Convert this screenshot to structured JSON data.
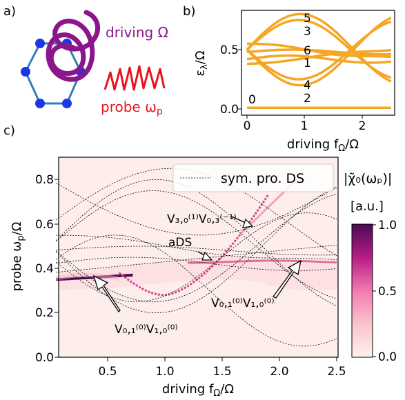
{
  "panel_a": {
    "label": "a)",
    "driving_text": "driving Ω",
    "probe_text_main": "probe ω",
    "probe_text_sub": "p"
  },
  "panel_b": {
    "label": "b)",
    "ylabel_main": "ε",
    "ylabel_sub": "λ",
    "ylabel_rest": "/Ω",
    "xlabel_main": "driving f",
    "xlabel_sub": "Ω",
    "xlabel_rest": "/Ω",
    "xticks": [
      "0",
      "1",
      "2"
    ],
    "yticks": [
      "0.0",
      "0.5"
    ],
    "level_labels": [
      "5",
      "3",
      "6",
      "1",
      "4",
      "2",
      "0"
    ]
  },
  "panel_c": {
    "label": "c)",
    "legend_text": "sym. pro. DS",
    "ylabel_main": "probe ω",
    "ylabel_sub": "p",
    "ylabel_rest": "/Ω",
    "xlabel_main": "driving f",
    "xlabel_sub": "Ω",
    "xlabel_rest": "/Ω",
    "xticks": [
      "0.5",
      "1.0",
      "1.5",
      "2.0",
      "2.5"
    ],
    "yticks": [
      "0.0",
      "0.2",
      "0.4",
      "0.6",
      "0.8"
    ],
    "colorbar_title": "|χ̃₀(ωₚ)|",
    "colorbar_unit": "[a.u.]",
    "colorbar_ticks": [
      "0.0",
      "0.5",
      "1.0"
    ],
    "ann_top": "V₃,₀⁽¹⁾V₀,₃⁽⁻¹⁾",
    "ann_ads": "aDS",
    "ann_left": "V₀,₁⁽⁰⁾V₁,₀⁽⁰⁾",
    "ann_right": "V₀,₁⁽⁰⁾V₁,₀⁽⁰⁾"
  },
  "colors": {
    "orange": "#f5a623",
    "purple": "#8b168b",
    "probe_red": "#e8141c",
    "lattice_blue": "#2f7fb7",
    "node_blue": "#1a37e6",
    "colormap_dark": "#4a0a55",
    "colormap_mid": "#d63f88"
  }
}
